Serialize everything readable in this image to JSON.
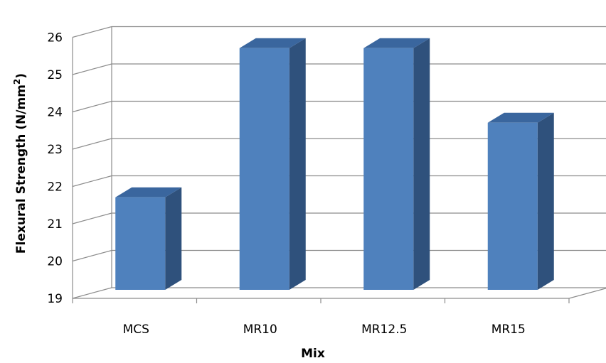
{
  "chart_data": {
    "type": "bar",
    "categories": [
      "MCS",
      "MR10",
      "MR12.5",
      "MR15"
    ],
    "values": [
      21.5,
      25.5,
      25.5,
      23.5
    ],
    "xlabel": "Mix",
    "ylabel_main": "Flexural Strength (N/mm",
    "ylabel_sup": "2",
    "ylabel_close": ")",
    "ylim": [
      19,
      26
    ],
    "yticks": [
      "19",
      "20",
      "21",
      "22",
      "23",
      "24",
      "25",
      "26"
    ],
    "grid": true,
    "style": "3d-column",
    "colors": {
      "front": "#4f81bd",
      "side": "#2f517c",
      "top": "#3a669e"
    }
  }
}
